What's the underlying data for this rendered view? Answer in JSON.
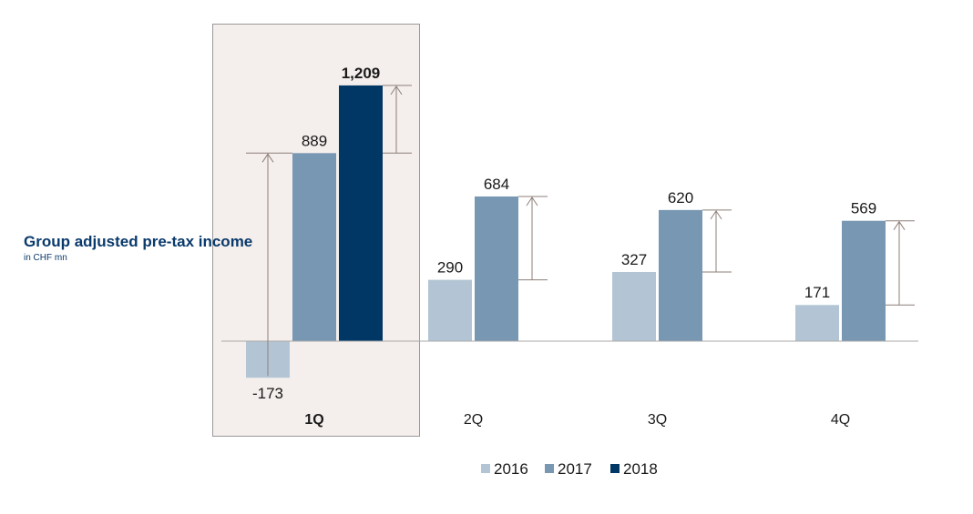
{
  "chart_data": {
    "type": "bar",
    "title": "Group adjusted pre-tax income",
    "subtitle": "in CHF mn",
    "categories": [
      "1Q",
      "2Q",
      "3Q",
      "4Q"
    ],
    "highlighted_category": "1Q",
    "series": [
      {
        "name": "2016",
        "values": [
          -173,
          290,
          327,
          171
        ],
        "color": "#b3c5d4"
      },
      {
        "name": "2017",
        "values": [
          889,
          684,
          620,
          569
        ],
        "color": "#7897b3"
      },
      {
        "name": "2018",
        "values": [
          1209,
          null,
          null,
          null
        ],
        "color": "#003764"
      }
    ],
    "ylim": [
      -200,
      1300
    ],
    "legend_position": "bottom-center",
    "grid": false,
    "annotations": "increase arrows between earlier and latest year bars"
  }
}
